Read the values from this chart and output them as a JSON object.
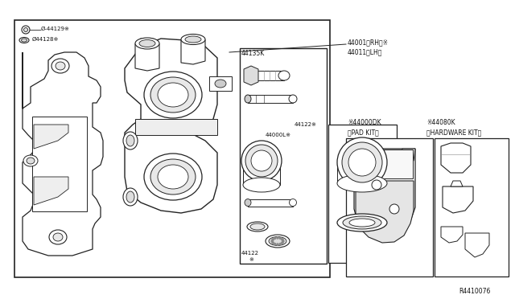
{
  "bg_color": "#f5f5f5",
  "line_color": "#222222",
  "text_color": "#111111",
  "diagram_id": "R4410076",
  "labels": {
    "screw_label": "Ø-44129※",
    "clip_label": "Ø44128※",
    "kit1": "44135K",
    "piston_label": "44122※",
    "piston_kit_label": "44000L※",
    "ring_label": "44122",
    "ring_sub": "※",
    "caliper_rh": "44001〈RH〉※",
    "caliper_lh": "44011〈LH〉",
    "pad_kit_num": "※44000DK",
    "pad_kit_label": "〈PAD KIT〉",
    "hw_kit_num": "※44080K",
    "hw_kit_label": "〈HARDWARE KIT〉"
  }
}
